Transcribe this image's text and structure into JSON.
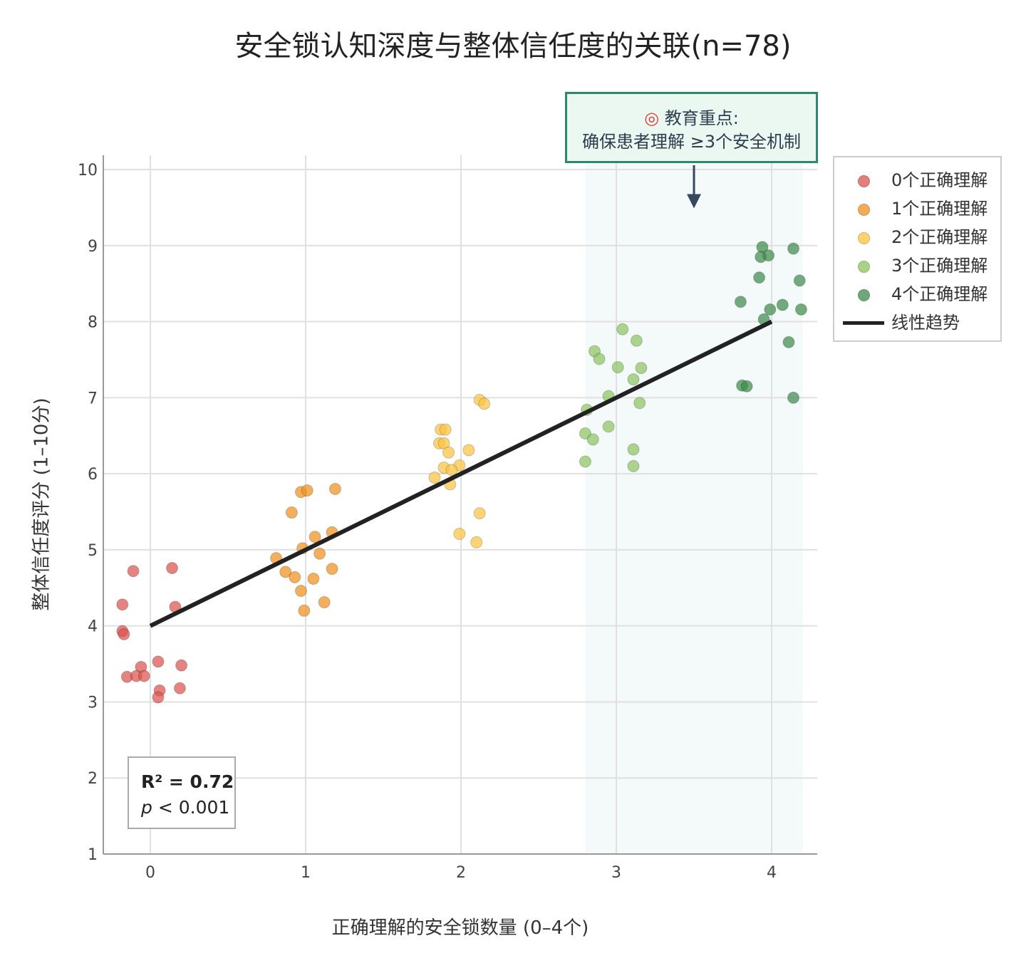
{
  "chart_data": {
    "type": "scatter",
    "title": "安全锁认知深度与整体信任度的关联(n=78)",
    "xlabel": "正确理解的安全锁数量 (0–4个)",
    "ylabel": "整体信任度评分 (1–10分)",
    "xlim": [
      -0.3,
      4.3
    ],
    "ylim": [
      1,
      10.19
    ],
    "xticks": [
      0,
      1,
      2,
      3,
      4
    ],
    "yticks": [
      1,
      2,
      3,
      4,
      5,
      6,
      7,
      8,
      9,
      10
    ],
    "grid": true,
    "legend_placement": "right",
    "highlight_band": {
      "x": [
        2.8,
        4.2
      ],
      "color": "#f4f9fa"
    },
    "series": [
      {
        "name": "0个正确理解",
        "color": "#d9534f",
        "points": [
          [
            -0.18,
            4.28
          ],
          [
            -0.11,
            4.72
          ],
          [
            0.14,
            4.76
          ],
          [
            0.16,
            4.25
          ],
          [
            -0.18,
            3.93
          ],
          [
            -0.17,
            3.89
          ],
          [
            0.05,
            3.53
          ],
          [
            0.2,
            3.48
          ],
          [
            -0.06,
            3.46
          ],
          [
            -0.15,
            3.33
          ],
          [
            -0.09,
            3.34
          ],
          [
            -0.04,
            3.34
          ],
          [
            0.06,
            3.15
          ],
          [
            0.19,
            3.18
          ],
          [
            0.05,
            3.06
          ]
        ]
      },
      {
        "name": "1个正确理解",
        "color": "#f0901e",
        "points": [
          [
            0.97,
            5.76
          ],
          [
            1.01,
            5.78
          ],
          [
            1.19,
            5.8
          ],
          [
            0.91,
            5.49
          ],
          [
            1.17,
            5.23
          ],
          [
            1.06,
            5.17
          ],
          [
            0.98,
            5.02
          ],
          [
            1.09,
            4.95
          ],
          [
            0.81,
            4.89
          ],
          [
            0.87,
            4.71
          ],
          [
            0.93,
            4.64
          ],
          [
            1.05,
            4.62
          ],
          [
            1.17,
            4.75
          ],
          [
            0.97,
            4.46
          ],
          [
            1.12,
            4.31
          ],
          [
            0.99,
            4.2
          ]
        ]
      },
      {
        "name": "2个正确理解",
        "color": "#fcc440",
        "points": [
          [
            2.12,
            6.97
          ],
          [
            2.15,
            6.92
          ],
          [
            1.87,
            6.58
          ],
          [
            1.9,
            6.58
          ],
          [
            1.86,
            6.4
          ],
          [
            1.89,
            6.4
          ],
          [
            1.92,
            6.28
          ],
          [
            2.05,
            6.31
          ],
          [
            1.89,
            6.08
          ],
          [
            1.99,
            6.11
          ],
          [
            1.94,
            6.05
          ],
          [
            1.83,
            5.95
          ],
          [
            1.93,
            5.86
          ],
          [
            2.12,
            5.48
          ],
          [
            1.99,
            5.21
          ],
          [
            2.1,
            5.1
          ]
        ]
      },
      {
        "name": "3个正确理解",
        "color": "#8ec460",
        "points": [
          [
            3.04,
            7.9
          ],
          [
            3.13,
            7.75
          ],
          [
            2.86,
            7.61
          ],
          [
            2.89,
            7.51
          ],
          [
            3.01,
            7.4
          ],
          [
            3.16,
            7.39
          ],
          [
            3.11,
            7.24
          ],
          [
            2.95,
            7.02
          ],
          [
            3.15,
            6.93
          ],
          [
            2.81,
            6.84
          ],
          [
            2.8,
            6.53
          ],
          [
            2.85,
            6.45
          ],
          [
            2.95,
            6.62
          ],
          [
            3.11,
            6.32
          ],
          [
            3.11,
            6.1
          ],
          [
            2.8,
            6.16
          ]
        ]
      },
      {
        "name": "4个正确理解",
        "color": "#3f8a4b",
        "points": [
          [
            3.94,
            8.98
          ],
          [
            3.93,
            8.85
          ],
          [
            3.98,
            8.87
          ],
          [
            4.14,
            8.96
          ],
          [
            3.92,
            8.58
          ],
          [
            4.18,
            8.54
          ],
          [
            3.8,
            8.26
          ],
          [
            4.07,
            8.22
          ],
          [
            3.99,
            8.16
          ],
          [
            4.19,
            8.16
          ],
          [
            3.95,
            8.03
          ],
          [
            4.11,
            7.73
          ],
          [
            3.81,
            7.16
          ],
          [
            3.84,
            7.15
          ],
          [
            4.14,
            7.0
          ]
        ]
      }
    ],
    "trend": {
      "name": "线性趋势",
      "color": "#222222",
      "x": [
        0,
        4
      ],
      "y": [
        4,
        8
      ]
    },
    "annotation": {
      "icon": "target-icon",
      "line1": "教育重点:",
      "line2": "确保患者理解 ≥3个安全机制",
      "arrow_to": [
        3.5,
        9.49
      ]
    },
    "stats": {
      "r2": "R² = 0.72",
      "p_label": "p",
      "p_rest": " < 0.001"
    }
  }
}
